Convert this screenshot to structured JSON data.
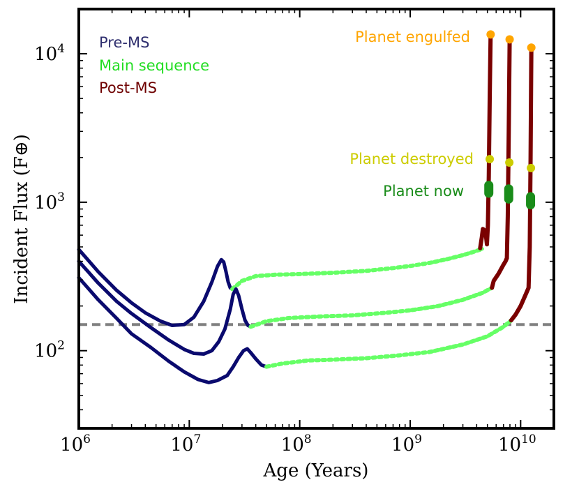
{
  "chart_data": {
    "type": "line",
    "xlabel": "Age (Years)",
    "ylabel": "Incident Flux (F⊕)",
    "x_scale": "log",
    "y_scale": "log",
    "xlim": [
      1000000,
      20000000000
    ],
    "ylim": [
      30,
      20000
    ],
    "x_ticks": [
      {
        "value": 1000000,
        "base": "10",
        "exp": "6"
      },
      {
        "value": 10000000,
        "base": "10",
        "exp": "7"
      },
      {
        "value": 100000000,
        "base": "10",
        "exp": "8"
      },
      {
        "value": 1000000000,
        "base": "10",
        "exp": "9"
      },
      {
        "value": 10000000000,
        "base": "10",
        "exp": "10"
      }
    ],
    "y_ticks": [
      {
        "value": 100,
        "base": "10",
        "exp": "2"
      },
      {
        "value": 1000,
        "base": "10",
        "exp": "3"
      },
      {
        "value": 10000,
        "base": "10",
        "exp": "4"
      }
    ],
    "grid": false,
    "reference_line": {
      "y": 150,
      "style": "dashed",
      "color": "#808080"
    },
    "colors": {
      "pre_ms": "#0a0a6e",
      "main_sequence": "#66ff66",
      "main_sequence_late": "#2e8b2e",
      "post_ms": "#7a0000",
      "engulfed": "#ffa500",
      "destroyed": "#cccc00",
      "now": "#1a8c1a"
    },
    "legend": {
      "placement": "top-left",
      "entries": [
        {
          "label": "Pre-MS",
          "color": "#2e2e6e"
        },
        {
          "label": "Main sequence",
          "color": "#22dd22"
        },
        {
          "label": "Post-MS",
          "color": "#6e0000"
        }
      ]
    },
    "annotations": [
      {
        "text": "Planet engulfed",
        "color": "#ffa500"
      },
      {
        "text": "Planet destroyed",
        "color": "#cccc00"
      },
      {
        "text": "Planet now",
        "color": "#1a8c1a"
      }
    ],
    "series": [
      {
        "pre_ms": [
          [
            1000000,
            480
          ],
          [
            1500000,
            340
          ],
          [
            2200000,
            255
          ],
          [
            3000000,
            210
          ],
          [
            4000000,
            180
          ],
          [
            5500000,
            158
          ],
          [
            7000000,
            148
          ],
          [
            9000000,
            150
          ],
          [
            11000000,
            168
          ],
          [
            13500000,
            215
          ],
          [
            16000000,
            290
          ],
          [
            18000000,
            370
          ],
          [
            19500000,
            410
          ],
          [
            20500000,
            395
          ],
          [
            21500000,
            340
          ],
          [
            22500000,
            290
          ],
          [
            23500000,
            265
          ],
          [
            24500000,
            260
          ]
        ],
        "main_sequence": [
          [
            24500000,
            260
          ],
          [
            30000000,
            295
          ],
          [
            40000000,
            318
          ],
          [
            60000000,
            325
          ],
          [
            100000000,
            328
          ],
          [
            200000000,
            335
          ],
          [
            400000000,
            345
          ],
          [
            700000000,
            360
          ],
          [
            1000000000,
            372
          ],
          [
            1500000000,
            390
          ],
          [
            2200000000,
            415
          ],
          [
            3000000000,
            440
          ],
          [
            3800000000,
            465
          ],
          [
            4500000000,
            485
          ]
        ],
        "post_ms": [
          [
            4300000000,
            490
          ],
          [
            4450000000,
            580
          ],
          [
            4550000000,
            660
          ],
          [
            4800000000,
            640
          ],
          [
            4950000000,
            520
          ],
          [
            5050000000,
            700
          ],
          [
            5150000000,
            1500
          ],
          [
            5250000000,
            5000
          ],
          [
            5350000000,
            13500
          ]
        ],
        "planet_now": [
          [
            5150000000,
            1150
          ],
          [
            5150000000,
            1300
          ]
        ],
        "destroyed": [
          [
            5250000000,
            1950
          ]
        ],
        "engulfed": [
          [
            5350000000,
            13500
          ]
        ]
      },
      {
        "pre_ms": [
          [
            1000000,
            400
          ],
          [
            1500000,
            285
          ],
          [
            2200000,
            215
          ],
          [
            3000000,
            178
          ],
          [
            4500000,
            143
          ],
          [
            6500000,
            118
          ],
          [
            9000000,
            102
          ],
          [
            11000000,
            96
          ],
          [
            13500000,
            95
          ],
          [
            16000000,
            100
          ],
          [
            18500000,
            115
          ],
          [
            21000000,
            140
          ],
          [
            23500000,
            190
          ],
          [
            25000000,
            240
          ],
          [
            26500000,
            260
          ],
          [
            28000000,
            235
          ],
          [
            30000000,
            190
          ],
          [
            32000000,
            160
          ],
          [
            34000000,
            148
          ],
          [
            36000000,
            145
          ]
        ],
        "main_sequence": [
          [
            36000000,
            145
          ],
          [
            50000000,
            158
          ],
          [
            80000000,
            166
          ],
          [
            150000000,
            170
          ],
          [
            300000000,
            173
          ],
          [
            600000000,
            180
          ],
          [
            1000000000,
            187
          ],
          [
            1800000000,
            200
          ],
          [
            3000000000,
            220
          ],
          [
            4500000000,
            245
          ],
          [
            5500000000,
            265
          ]
        ],
        "post_ms": [
          [
            5500000000,
            265
          ],
          [
            5700000000,
            295
          ],
          [
            6300000000,
            330
          ],
          [
            7000000000,
            380
          ],
          [
            7300000000,
            400
          ],
          [
            7500000000,
            420
          ],
          [
            7650000000,
            800
          ],
          [
            7800000000,
            3000
          ],
          [
            7950000000,
            12500
          ]
        ],
        "planet_now": [
          [
            7800000000,
            1050
          ],
          [
            7800000000,
            1230
          ]
        ],
        "destroyed": [
          [
            7900000000,
            1850
          ]
        ],
        "engulfed": [
          [
            7950000000,
            12500
          ]
        ]
      },
      {
        "pre_ms": [
          [
            1000000,
            310
          ],
          [
            1500000,
            220
          ],
          [
            2200000,
            165
          ],
          [
            3000000,
            130
          ],
          [
            4500000,
            105
          ],
          [
            6500000,
            85
          ],
          [
            9000000,
            72
          ],
          [
            12000000,
            64
          ],
          [
            15000000,
            61
          ],
          [
            18000000,
            63
          ],
          [
            22000000,
            68
          ],
          [
            25000000,
            78
          ],
          [
            28000000,
            90
          ],
          [
            31000000,
            100
          ],
          [
            33500000,
            103
          ],
          [
            36000000,
            97
          ],
          [
            40000000,
            88
          ],
          [
            45000000,
            80
          ],
          [
            50000000,
            78
          ]
        ],
        "main_sequence": [
          [
            50000000,
            78
          ],
          [
            70000000,
            82
          ],
          [
            120000000,
            86
          ],
          [
            200000000,
            87
          ],
          [
            400000000,
            89
          ],
          [
            800000000,
            93
          ],
          [
            1500000000,
            98
          ],
          [
            3000000000,
            110
          ],
          [
            5000000000,
            125
          ],
          [
            7000000000,
            145
          ],
          [
            8200000000,
            160
          ]
        ],
        "post_ms": [
          [
            8200000000,
            160
          ],
          [
            9000000000,
            175
          ],
          [
            10000000000,
            200
          ],
          [
            11000000000,
            235
          ],
          [
            11800000000,
            265
          ],
          [
            12100000000,
            500
          ],
          [
            12300000000,
            2000
          ],
          [
            12450000000,
            7000
          ],
          [
            12500000000,
            11000
          ]
        ],
        "planet_now": [
          [
            12300000000,
            960
          ],
          [
            12300000000,
            1090
          ]
        ],
        "destroyed": [
          [
            12400000000,
            1700
          ]
        ],
        "engulfed": [
          [
            12500000000,
            11000
          ]
        ]
      }
    ]
  }
}
